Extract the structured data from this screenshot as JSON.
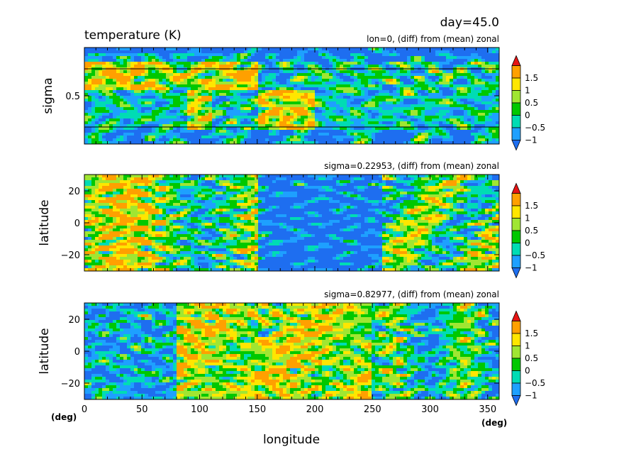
{
  "chart_data": {
    "type": "heatmap",
    "title": "temperature (K)",
    "time_label": "day=45.0",
    "xlabel": "longitude",
    "x_unit_left": "(deg)",
    "x_unit_right": "(deg)",
    "x_range": [
      0,
      360
    ],
    "x_ticks": [
      "0",
      "50",
      "100",
      "150",
      "200",
      "250",
      "300",
      "350"
    ],
    "x_tick_values": [
      0,
      50,
      100,
      150,
      200,
      250,
      300,
      350
    ],
    "colorbar": {
      "labels": [
        "1.5",
        "1",
        "0.5",
        "0",
        "−0.5",
        "−1"
      ],
      "levels": [
        -1,
        -0.5,
        0,
        0.5,
        1,
        1.5
      ],
      "colors": [
        "#1e6ef0",
        "#1ea0ff",
        "#00dcb4",
        "#00c800",
        "#a0e632",
        "#ffe600",
        "#ffa000",
        "#e61414"
      ]
    },
    "panels": [
      {
        "subtitle": "lon=0, (diff) from (mean) zonal",
        "ylabel": "sigma",
        "y_range": [
          0,
          1
        ],
        "y_ticks": [
          "0.5"
        ],
        "y_tick_values": [
          0.5
        ],
        "ref_lines": [
          0.22953,
          0.82977
        ],
        "summary": "strong cold band near sigma 1; warm anomalies 0-150 deg lower layers and 150-200 deg mid layers"
      },
      {
        "subtitle": "sigma=0.22953, (diff) from (mean) zonal",
        "ylabel": "latitude",
        "y_range": [
          -30,
          30
        ],
        "y_ticks": [
          "20",
          "0",
          "−20"
        ],
        "y_tick_values": [
          20,
          0,
          -20
        ],
        "summary": "warm 0-150 deg, broad cold 150-260 deg, mixed 260-360 deg"
      },
      {
        "subtitle": "sigma=0.82977, (diff) from (mean) zonal",
        "ylabel": "latitude",
        "y_range": [
          -30,
          30
        ],
        "y_ticks": [
          "20",
          "0",
          "−20"
        ],
        "y_tick_values": [
          20,
          0,
          -20
        ],
        "summary": "cold 0-80 deg, warm 100-250 deg, mixed beyond"
      }
    ]
  }
}
